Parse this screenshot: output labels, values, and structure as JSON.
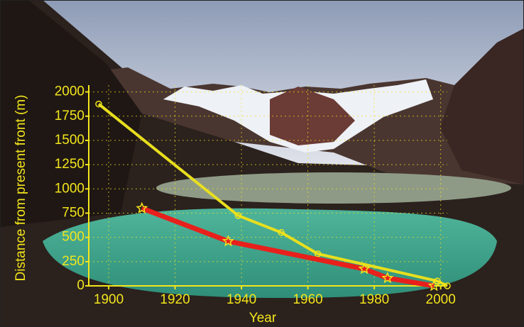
{
  "chart_data": {
    "type": "line",
    "x_label": "Year",
    "y_label": "Distance from present front (m)",
    "xlim": [
      1894,
      2002
    ],
    "ylim": [
      0,
      2070
    ],
    "xticks": [
      1900,
      1920,
      1940,
      1960,
      1980,
      2000
    ],
    "yticks": [
      0,
      250,
      500,
      750,
      1000,
      1250,
      1500,
      1750,
      2000
    ],
    "grid": true,
    "axis_color": "#f2e51c",
    "series": [
      {
        "color": "#e8df1e",
        "marker": "circle",
        "marker_color": "#f2e51c",
        "x": [
          1897,
          1939,
          1952,
          1963,
          1999,
          2002
        ],
        "values": [
          1875,
          725,
          550,
          330,
          50,
          0
        ]
      },
      {
        "color": "#e8201c",
        "marker": "star",
        "marker_color": "#f2e51c",
        "x": [
          1910,
          1936,
          1977,
          1984,
          1998
        ],
        "values": [
          800,
          460,
          175,
          80,
          0
        ]
      }
    ]
  }
}
